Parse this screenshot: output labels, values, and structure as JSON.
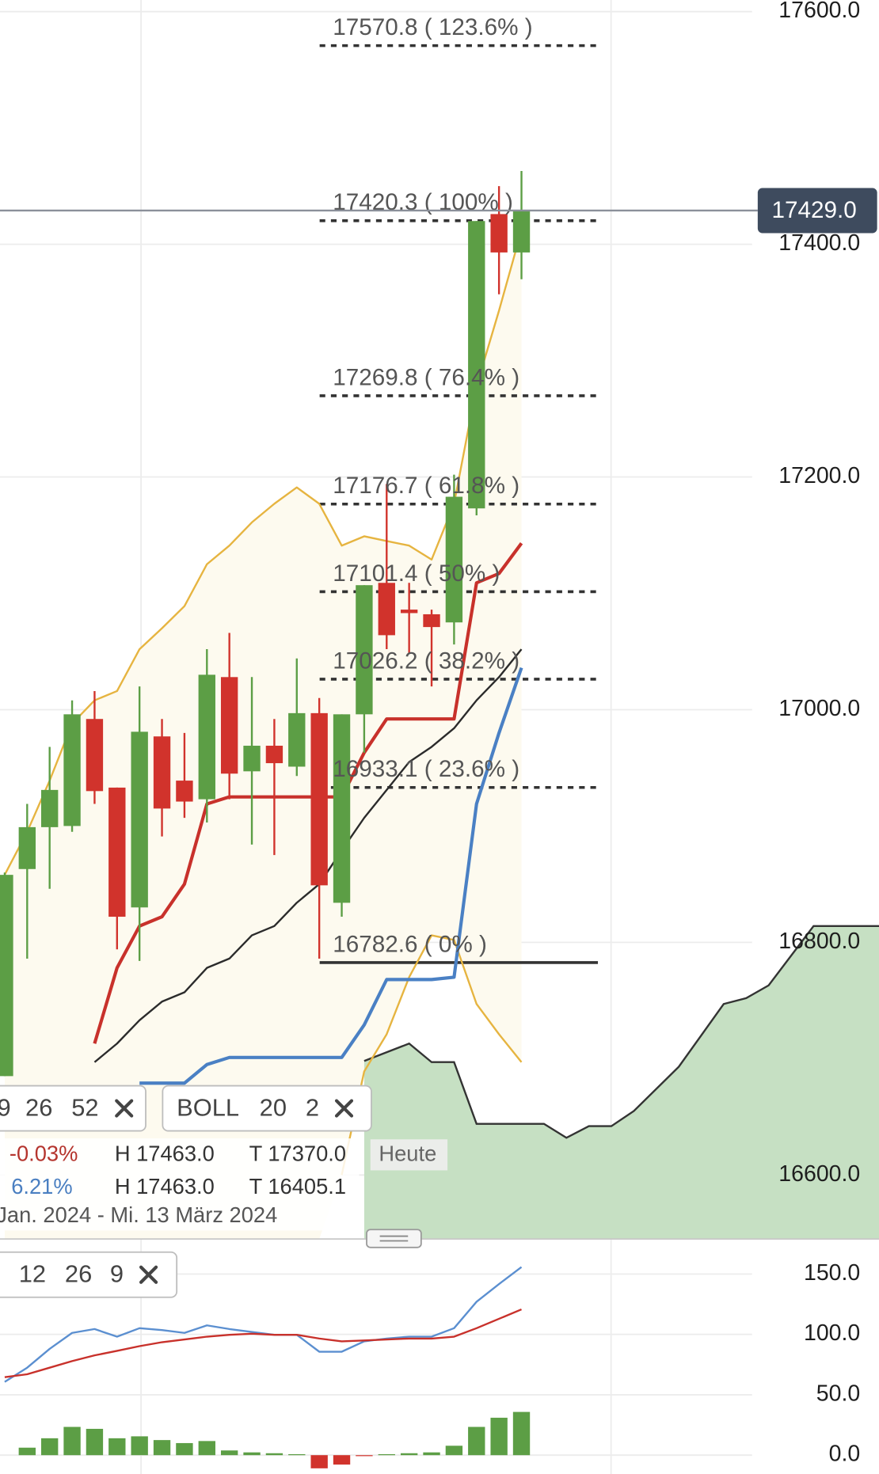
{
  "chart_data": [
    {
      "type": "candlestick",
      "categories": [
        null,
        null,
        null,
        null,
        null,
        null,
        null,
        null,
        null,
        null,
        null,
        null,
        null,
        null,
        null,
        null,
        null,
        null,
        null,
        null,
        null,
        null,
        null,
        null
      ],
      "open": [
        16685,
        16863,
        16899,
        16900,
        16992,
        16933,
        16830,
        16977,
        16939,
        16923,
        17028,
        16947,
        16969,
        16951,
        16997,
        16834,
        16996,
        17109,
        17086,
        17082,
        17075,
        17173,
        17426,
        17393
      ],
      "high": [
        16860,
        16919,
        16968,
        17008,
        17016,
        16933,
        17020,
        16992,
        16980,
        17052,
        17066,
        17028,
        16992,
        17044,
        17010,
        16996,
        17107,
        17194,
        17109,
        17086,
        17202,
        17420,
        17450,
        17463
      ],
      "low": [
        16685,
        16786,
        16846,
        16895,
        16919,
        16794,
        16784,
        16891,
        16907,
        16903,
        16923,
        16884,
        16875,
        16943,
        16786,
        16822,
        16963,
        17052,
        17048,
        17020,
        17056,
        17167,
        17357,
        17370
      ],
      "close": [
        16858,
        16899,
        16931,
        16996,
        16930,
        16822,
        16981,
        16915,
        16921,
        17030,
        16945,
        16969,
        16954,
        16997,
        16849,
        16996,
        17107,
        17064,
        17083,
        17071,
        17183,
        17420,
        17393,
        17429
      ],
      "up_color": "#5c9e45",
      "down_color": "#d1332c",
      "ylim": [
        16545,
        17610
      ],
      "yticks": [
        {
          "value": 16600,
          "label": "16600.0"
        },
        {
          "value": 16800,
          "label": "16800.0"
        },
        {
          "value": 17000,
          "label": "17000.0"
        },
        {
          "value": 17200,
          "label": "17200.0"
        },
        {
          "value": 17400,
          "label": "17400.0"
        },
        {
          "value": 17600,
          "label": "17600.0"
        }
      ],
      "grid": true,
      "band_fill": "#fdfaef",
      "series": [
        {
          "color": "#e6b440",
          "line_width": 2,
          "values": [
            16858,
            16895,
            16939,
            16988,
            17008,
            17016,
            17052,
            17070,
            17089,
            17125,
            17141,
            17161,
            17177,
            17191,
            17177,
            17141,
            17149,
            17145,
            17141,
            17129,
            17177,
            17278,
            17343,
            17412
          ]
        },
        {
          "color": "#e6b440",
          "line_width": 2,
          "values": [
            null,
            null,
            null,
            null,
            null,
            null,
            null,
            null,
            null,
            null,
            null,
            null,
            null,
            null,
            null,
            16600,
            16689,
            16721,
            16770,
            16806,
            16802,
            16747,
            16721,
            16697
          ]
        },
        {
          "color": "#c8312b",
          "line_width": 3.5,
          "values": [
            null,
            null,
            null,
            null,
            16713,
            16778,
            16814,
            16822,
            16850,
            16919,
            16925,
            16925,
            16925,
            16925,
            16925,
            16925,
            16963,
            16992,
            16992,
            16992,
            16992,
            17109,
            17117,
            17143
          ]
        },
        {
          "color": "#2b2b2b",
          "line_width": 2,
          "values": [
            null,
            null,
            null,
            null,
            16697,
            16713,
            16733,
            16749,
            16757,
            16778,
            16786,
            16806,
            16814,
            16834,
            16850,
            16879,
            16907,
            16931,
            16955,
            16968,
            16984,
            17008,
            17028,
            17052
          ]
        },
        {
          "color": "#4a80c4",
          "line_width": 3.5,
          "values": [
            null,
            null,
            null,
            null,
            null,
            null,
            16679,
            16679,
            16679,
            16695,
            16701,
            16701,
            16701,
            16701,
            16701,
            16701,
            16729,
            16768,
            16768,
            16768,
            16770,
            16919,
            16980,
            17036
          ]
        }
      ],
      "cloud": {
        "color": "#c6e0c3",
        "line_color": "#333333",
        "x": [
          16,
          18,
          19,
          20,
          21,
          24,
          25,
          26,
          27,
          28,
          30,
          32,
          33,
          34,
          36,
          39
        ],
        "values": [
          16698,
          16713,
          16697,
          16697,
          16644,
          16644,
          16632,
          16642,
          16642,
          16655,
          16693,
          16747,
          16752,
          16763,
          16814,
          16814
        ]
      },
      "levels": [
        {
          "value": 17570.8,
          "label": "17570.8 ( 123.6% )",
          "line": "dashed"
        },
        {
          "value": 17420.3,
          "label": "17420.3 ( 100% )",
          "line": "dashed"
        },
        {
          "value": 17269.8,
          "label": "17269.8 ( 76.4% )",
          "line": "dashed"
        },
        {
          "value": 17176.7,
          "label": "17176.7 ( 61.8% )",
          "line": "dashed"
        },
        {
          "value": 17101.4,
          "label": "17101.4 ( 50% )",
          "line": "dashed"
        },
        {
          "value": 17026.2,
          "label": "17026.2 ( 38.2% )",
          "line": "dashed"
        },
        {
          "value": 16933.1,
          "label": "16933.1 ( 23.6% )",
          "line": "dashed"
        },
        {
          "value": 16782.6,
          "label": "16782.6 ( 0% )",
          "line": "solid"
        }
      ],
      "last_price": {
        "value": 17429.0,
        "label": "17429.0",
        "color": "#3e4b5e"
      }
    },
    {
      "type": "macd",
      "categories": [
        null,
        null,
        null,
        null,
        null,
        null,
        null,
        null,
        null,
        null,
        null,
        null,
        null,
        null,
        null,
        null,
        null,
        null,
        null,
        null,
        null,
        null,
        null,
        null
      ],
      "values": [
        null,
        6.2,
        14,
        23.4,
        21.8,
        14,
        15.6,
        12.5,
        10,
        11.7,
        3.9,
        2.3,
        1.6,
        0.8,
        -10.9,
        -7.8,
        -0.8,
        0.8,
        1.6,
        2.3,
        7.8,
        23.4,
        31,
        35.8
      ],
      "up_color": "#5c9e45",
      "down_color": "#d1332c",
      "ylim": [
        -15.6,
        179
      ],
      "yticks": [
        {
          "value": 0,
          "label": "0.0"
        },
        {
          "value": 50,
          "label": "50.0"
        },
        {
          "value": 100,
          "label": "100.0"
        },
        {
          "value": 150,
          "label": "150.0"
        }
      ],
      "grid": true,
      "series": [
        {
          "color": "#5b8fd0",
          "line_width": 2,
          "values": [
            60.7,
            72.4,
            88,
            101.2,
            104.4,
            98.1,
            105.1,
            103.6,
            101.2,
            107.5,
            104.4,
            102,
            99.7,
            99.7,
            85.7,
            85.7,
            94.2,
            96.6,
            98.1,
            98.1,
            105.1,
            127,
            141.7,
            155.8
          ]
        },
        {
          "color": "#c8312b",
          "line_width": 2,
          "values": [
            64.6,
            67,
            72.4,
            77.9,
            82.6,
            86.4,
            90.3,
            93.5,
            95.8,
            98.1,
            99.7,
            100.5,
            99.7,
            99.7,
            96.6,
            94.2,
            95,
            95.8,
            96.6,
            96.6,
            98.1,
            105.1,
            112.9,
            120.7
          ]
        }
      ]
    }
  ],
  "ui": {
    "indicator_boxes": [
      {
        "tokens": [
          "9",
          "26",
          "52"
        ]
      },
      {
        "tokens": [
          "BOLL",
          "20",
          "2"
        ]
      },
      {
        "tokens": [
          "12",
          "26",
          "9"
        ]
      }
    ],
    "info": {
      "rows": [
        [
          "-0.03%",
          "H 17463.0",
          "T 17370.0"
        ],
        [
          "6.21%",
          "H 17463.0",
          "T 16405.1"
        ]
      ],
      "badge": "Heute",
      "range": "Jan. 2024 - Mi. 13 März 2024"
    }
  }
}
